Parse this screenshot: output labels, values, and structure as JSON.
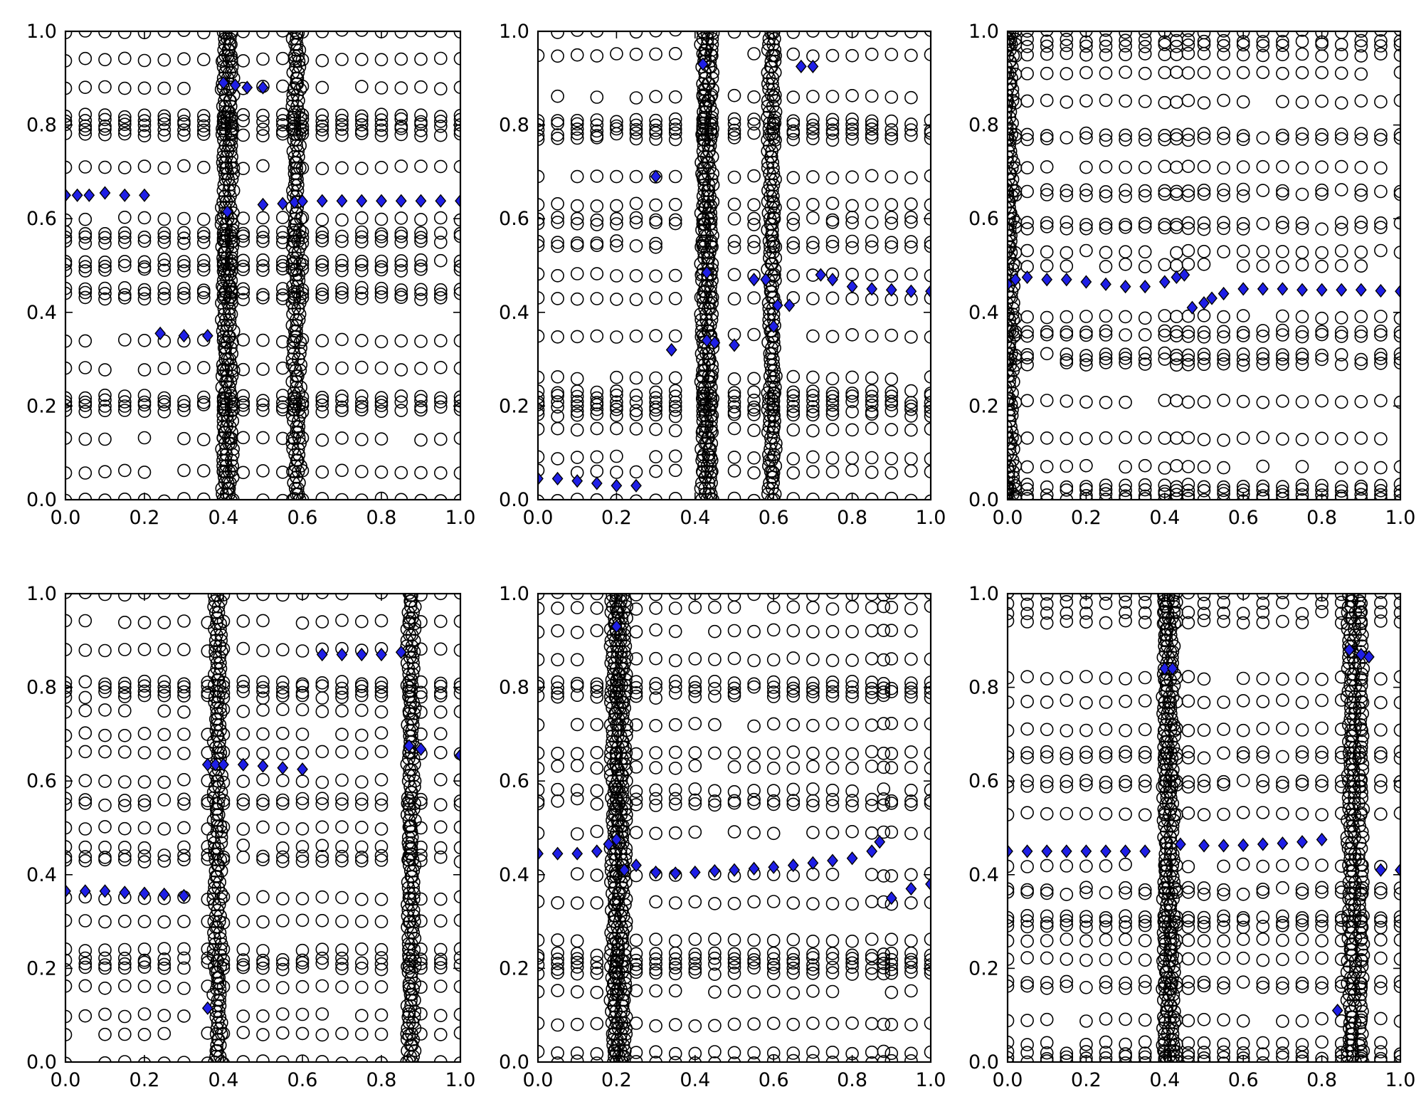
{
  "figure": {
    "layout": {
      "rows": 2,
      "cols": 3
    }
  },
  "chart_data": [
    {
      "type": "scatter",
      "xlim": [
        0,
        1
      ],
      "ylim": [
        0,
        1
      ],
      "xticks": [
        "0.0",
        "0.2",
        "0.4",
        "0.6",
        "0.8",
        "1.0"
      ],
      "yticks": [
        "0.0",
        "0.2",
        "0.4",
        "0.6",
        "0.8",
        "1.0"
      ],
      "grid": false,
      "marker_colors": {
        "circle_edge": "#000000",
        "diamond_fill": "#1f1fe6",
        "diamond_edge": "#000000"
      },
      "circle_rows": [
        0.0,
        0.06,
        0.13,
        0.19,
        0.2,
        0.21,
        0.22,
        0.28,
        0.34,
        0.43,
        0.44,
        0.45,
        0.49,
        0.5,
        0.51,
        0.55,
        0.56,
        0.57,
        0.6,
        0.71,
        0.78,
        0.79,
        0.8,
        0.81,
        0.82,
        0.88,
        0.94,
        1.0
      ],
      "circle_xs": [
        0.0,
        0.05,
        0.1,
        0.15,
        0.2,
        0.25,
        0.3,
        0.35,
        0.4,
        0.42,
        0.45,
        0.5,
        0.55,
        0.58,
        0.6,
        0.65,
        0.7,
        0.75,
        0.8,
        0.85,
        0.9,
        0.95,
        1.0
      ],
      "dense_columns": [
        0.4,
        0.41,
        0.42,
        0.58,
        0.59
      ],
      "diamonds": [
        [
          0.0,
          0.65
        ],
        [
          0.03,
          0.65
        ],
        [
          0.06,
          0.65
        ],
        [
          0.1,
          0.655
        ],
        [
          0.15,
          0.65
        ],
        [
          0.2,
          0.65
        ],
        [
          0.24,
          0.355
        ],
        [
          0.3,
          0.35
        ],
        [
          0.36,
          0.35
        ],
        [
          0.4,
          0.89
        ],
        [
          0.43,
          0.885
        ],
        [
          0.46,
          0.88
        ],
        [
          0.5,
          0.88
        ],
        [
          0.41,
          0.615
        ],
        [
          0.5,
          0.63
        ],
        [
          0.55,
          0.632
        ],
        [
          0.58,
          0.635
        ],
        [
          0.6,
          0.637
        ],
        [
          0.65,
          0.638
        ],
        [
          0.7,
          0.638
        ],
        [
          0.75,
          0.638
        ],
        [
          0.8,
          0.638
        ],
        [
          0.85,
          0.638
        ],
        [
          0.9,
          0.638
        ],
        [
          0.95,
          0.638
        ],
        [
          1.0,
          0.638
        ]
      ]
    },
    {
      "type": "scatter",
      "xlim": [
        0,
        1
      ],
      "ylim": [
        0,
        1
      ],
      "xticks": [
        "0.0",
        "0.2",
        "0.4",
        "0.6",
        "0.8",
        "1.0"
      ],
      "yticks": [
        "0.0",
        "0.2",
        "0.4",
        "0.6",
        "0.8",
        "1.0"
      ],
      "grid": false,
      "marker_colors": {
        "circle_edge": "#000000",
        "diamond_fill": "#1f1fe6",
        "diamond_edge": "#000000"
      },
      "circle_rows": [
        0.0,
        0.06,
        0.09,
        0.15,
        0.18,
        0.19,
        0.2,
        0.21,
        0.22,
        0.23,
        0.26,
        0.35,
        0.43,
        0.48,
        0.54,
        0.55,
        0.59,
        0.6,
        0.63,
        0.69,
        0.77,
        0.78,
        0.79,
        0.8,
        0.81,
        0.86,
        0.95,
        1.0
      ],
      "circle_xs": [
        0.0,
        0.05,
        0.1,
        0.15,
        0.2,
        0.25,
        0.3,
        0.35,
        0.42,
        0.44,
        0.5,
        0.55,
        0.6,
        0.65,
        0.7,
        0.75,
        0.8,
        0.85,
        0.9,
        0.95,
        1.0
      ],
      "dense_columns": [
        0.42,
        0.43,
        0.44,
        0.59,
        0.6
      ],
      "diamonds": [
        [
          0.0,
          0.045
        ],
        [
          0.05,
          0.045
        ],
        [
          0.1,
          0.04
        ],
        [
          0.15,
          0.035
        ],
        [
          0.2,
          0.03
        ],
        [
          0.25,
          0.03
        ],
        [
          0.3,
          0.69
        ],
        [
          0.34,
          0.32
        ],
        [
          0.42,
          0.93
        ],
        [
          0.43,
          0.485
        ],
        [
          0.43,
          0.34
        ],
        [
          0.45,
          0.335
        ],
        [
          0.5,
          0.33
        ],
        [
          0.55,
          0.47
        ],
        [
          0.58,
          0.47
        ],
        [
          0.6,
          0.37
        ],
        [
          0.61,
          0.415
        ],
        [
          0.64,
          0.415
        ],
        [
          0.67,
          0.925
        ],
        [
          0.7,
          0.925
        ],
        [
          0.72,
          0.48
        ],
        [
          0.75,
          0.47
        ],
        [
          0.8,
          0.455
        ],
        [
          0.85,
          0.45
        ],
        [
          0.9,
          0.448
        ],
        [
          0.95,
          0.445
        ],
        [
          1.0,
          0.445
        ]
      ]
    },
    {
      "type": "scatter",
      "xlim": [
        0,
        1
      ],
      "ylim": [
        0,
        1
      ],
      "xticks": [
        "0.0",
        "0.2",
        "0.4",
        "0.6",
        "0.8",
        "1.0"
      ],
      "yticks": [
        "0.0",
        "0.2",
        "0.4",
        "0.6",
        "0.8",
        "1.0"
      ],
      "grid": false,
      "marker_colors": {
        "circle_edge": "#000000",
        "diamond_fill": "#1f1fe6",
        "diamond_edge": "#000000"
      },
      "circle_rows": [
        0.0,
        0.01,
        0.02,
        0.03,
        0.07,
        0.13,
        0.21,
        0.29,
        0.3,
        0.31,
        0.35,
        0.36,
        0.39,
        0.5,
        0.53,
        0.58,
        0.59,
        0.65,
        0.66,
        0.71,
        0.77,
        0.78,
        0.85,
        0.91,
        0.95,
        0.97,
        0.98,
        1.0
      ],
      "circle_xs": [
        0.0,
        0.02,
        0.05,
        0.1,
        0.15,
        0.2,
        0.25,
        0.3,
        0.35,
        0.4,
        0.43,
        0.46,
        0.5,
        0.55,
        0.6,
        0.65,
        0.7,
        0.75,
        0.8,
        0.85,
        0.9,
        0.95,
        1.0
      ],
      "dense_columns": [
        0.0,
        0.01
      ],
      "diamonds": [
        [
          0.0,
          0.46
        ],
        [
          0.02,
          0.47
        ],
        [
          0.05,
          0.475
        ],
        [
          0.1,
          0.47
        ],
        [
          0.15,
          0.47
        ],
        [
          0.2,
          0.465
        ],
        [
          0.25,
          0.46
        ],
        [
          0.3,
          0.455
        ],
        [
          0.35,
          0.455
        ],
        [
          0.4,
          0.465
        ],
        [
          0.43,
          0.475
        ],
        [
          0.45,
          0.48
        ],
        [
          0.47,
          0.41
        ],
        [
          0.5,
          0.42
        ],
        [
          0.52,
          0.43
        ],
        [
          0.55,
          0.44
        ],
        [
          0.6,
          0.45
        ],
        [
          0.65,
          0.45
        ],
        [
          0.7,
          0.45
        ],
        [
          0.75,
          0.448
        ],
        [
          0.8,
          0.448
        ],
        [
          0.85,
          0.448
        ],
        [
          0.9,
          0.448
        ],
        [
          0.95,
          0.446
        ],
        [
          1.0,
          0.445
        ]
      ]
    },
    {
      "type": "scatter",
      "xlim": [
        0,
        1
      ],
      "ylim": [
        0,
        1
      ],
      "xticks": [
        "0.0",
        "0.2",
        "0.4",
        "0.6",
        "0.8",
        "1.0"
      ],
      "yticks": [
        "0.0",
        "0.2",
        "0.4",
        "0.6",
        "0.8",
        "1.0"
      ],
      "grid": false,
      "marker_colors": {
        "circle_edge": "#000000",
        "diamond_fill": "#1f1fe6",
        "diamond_edge": "#000000"
      },
      "circle_rows": [
        0.0,
        0.06,
        0.1,
        0.16,
        0.2,
        0.21,
        0.22,
        0.24,
        0.3,
        0.35,
        0.43,
        0.44,
        0.46,
        0.5,
        0.55,
        0.56,
        0.6,
        0.66,
        0.7,
        0.75,
        0.78,
        0.79,
        0.8,
        0.81,
        0.88,
        0.94,
        1.0
      ],
      "circle_xs": [
        0.0,
        0.05,
        0.1,
        0.15,
        0.2,
        0.25,
        0.3,
        0.36,
        0.4,
        0.45,
        0.5,
        0.55,
        0.6,
        0.65,
        0.7,
        0.75,
        0.8,
        0.87,
        0.9,
        0.95,
        1.0
      ],
      "dense_columns": [
        0.38,
        0.39,
        0.87,
        0.88
      ],
      "diamonds": [
        [
          0.0,
          0.365
        ],
        [
          0.05,
          0.365
        ],
        [
          0.1,
          0.365
        ],
        [
          0.15,
          0.362
        ],
        [
          0.2,
          0.36
        ],
        [
          0.25,
          0.358
        ],
        [
          0.3,
          0.355
        ],
        [
          0.36,
          0.635
        ],
        [
          0.38,
          0.635
        ],
        [
          0.4,
          0.635
        ],
        [
          0.45,
          0.635
        ],
        [
          0.5,
          0.632
        ],
        [
          0.55,
          0.628
        ],
        [
          0.6,
          0.625
        ],
        [
          0.36,
          0.115
        ],
        [
          0.65,
          0.87
        ],
        [
          0.7,
          0.87
        ],
        [
          0.75,
          0.87
        ],
        [
          0.8,
          0.87
        ],
        [
          0.85,
          0.875
        ],
        [
          0.87,
          0.675
        ],
        [
          0.9,
          0.668
        ],
        [
          1.0,
          0.655
        ]
      ]
    },
    {
      "type": "scatter",
      "xlim": [
        0,
        1
      ],
      "ylim": [
        0,
        1
      ],
      "xticks": [
        "0.0",
        "0.2",
        "0.4",
        "0.6",
        "0.8",
        "1.0"
      ],
      "yticks": [
        "0.0",
        "0.2",
        "0.4",
        "0.6",
        "0.8",
        "1.0"
      ],
      "grid": false,
      "marker_colors": {
        "circle_edge": "#000000",
        "diamond_fill": "#1f1fe6",
        "diamond_edge": "#000000"
      },
      "circle_rows": [
        0.0,
        0.02,
        0.08,
        0.15,
        0.19,
        0.2,
        0.21,
        0.22,
        0.23,
        0.26,
        0.34,
        0.4,
        0.49,
        0.55,
        0.56,
        0.58,
        0.63,
        0.66,
        0.72,
        0.78,
        0.79,
        0.8,
        0.81,
        0.86,
        0.92,
        0.97,
        1.0
      ],
      "circle_xs": [
        0.0,
        0.05,
        0.1,
        0.15,
        0.2,
        0.25,
        0.3,
        0.35,
        0.4,
        0.45,
        0.5,
        0.55,
        0.6,
        0.65,
        0.7,
        0.75,
        0.8,
        0.85,
        0.88,
        0.9,
        0.95,
        1.0
      ],
      "dense_columns": [
        0.19,
        0.2,
        0.21,
        0.22
      ],
      "diamonds": [
        [
          0.0,
          0.445
        ],
        [
          0.05,
          0.445
        ],
        [
          0.1,
          0.445
        ],
        [
          0.15,
          0.45
        ],
        [
          0.18,
          0.465
        ],
        [
          0.2,
          0.475
        ],
        [
          0.2,
          0.93
        ],
        [
          0.22,
          0.41
        ],
        [
          0.25,
          0.42
        ],
        [
          0.3,
          0.405
        ],
        [
          0.35,
          0.403
        ],
        [
          0.4,
          0.405
        ],
        [
          0.45,
          0.408
        ],
        [
          0.5,
          0.41
        ],
        [
          0.55,
          0.413
        ],
        [
          0.6,
          0.416
        ],
        [
          0.65,
          0.42
        ],
        [
          0.7,
          0.425
        ],
        [
          0.75,
          0.43
        ],
        [
          0.8,
          0.435
        ],
        [
          0.85,
          0.45
        ],
        [
          0.87,
          0.47
        ],
        [
          0.9,
          0.35
        ],
        [
          0.95,
          0.37
        ],
        [
          1.0,
          0.38
        ]
      ]
    },
    {
      "type": "scatter",
      "xlim": [
        0,
        1
      ],
      "ylim": [
        0,
        1
      ],
      "xticks": [
        "0.0",
        "0.2",
        "0.4",
        "0.6",
        "0.8",
        "1.0"
      ],
      "yticks": [
        "0.0",
        "0.2",
        "0.4",
        "0.6",
        "0.8",
        "1.0"
      ],
      "grid": false,
      "marker_colors": {
        "circle_edge": "#000000",
        "diamond_fill": "#1f1fe6",
        "diamond_edge": "#000000"
      },
      "circle_rows": [
        0.0,
        0.01,
        0.02,
        0.04,
        0.09,
        0.16,
        0.17,
        0.22,
        0.26,
        0.29,
        0.3,
        0.31,
        0.36,
        0.37,
        0.42,
        0.53,
        0.59,
        0.6,
        0.65,
        0.66,
        0.71,
        0.77,
        0.82,
        0.94,
        0.96,
        0.98,
        1.0
      ],
      "circle_xs": [
        0.0,
        0.05,
        0.1,
        0.15,
        0.2,
        0.25,
        0.3,
        0.35,
        0.4,
        0.43,
        0.46,
        0.5,
        0.55,
        0.6,
        0.65,
        0.7,
        0.75,
        0.8,
        0.85,
        0.9,
        0.95,
        1.0
      ],
      "dense_columns": [
        0.4,
        0.41,
        0.42,
        0.87,
        0.88,
        0.9
      ],
      "diamonds": [
        [
          0.0,
          0.45
        ],
        [
          0.05,
          0.45
        ],
        [
          0.1,
          0.45
        ],
        [
          0.15,
          0.45
        ],
        [
          0.2,
          0.45
        ],
        [
          0.25,
          0.45
        ],
        [
          0.3,
          0.45
        ],
        [
          0.35,
          0.45
        ],
        [
          0.4,
          0.84
        ],
        [
          0.42,
          0.84
        ],
        [
          0.44,
          0.465
        ],
        [
          0.5,
          0.462
        ],
        [
          0.55,
          0.462
        ],
        [
          0.6,
          0.463
        ],
        [
          0.65,
          0.465
        ],
        [
          0.7,
          0.467
        ],
        [
          0.75,
          0.47
        ],
        [
          0.8,
          0.475
        ],
        [
          0.84,
          0.11
        ],
        [
          0.87,
          0.88
        ],
        [
          0.9,
          0.87
        ],
        [
          0.92,
          0.865
        ],
        [
          0.95,
          0.41
        ],
        [
          1.0,
          0.41
        ]
      ]
    }
  ]
}
